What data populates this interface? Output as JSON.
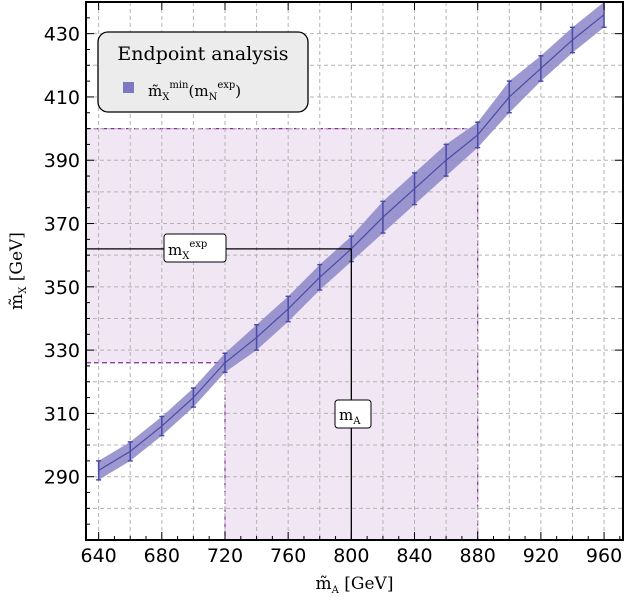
{
  "chart_data": {
    "type": "line",
    "xlabel": {
      "main": "m̃",
      "sub": "A",
      "unit": " [GeV]"
    },
    "ylabel": {
      "main": "m̃",
      "sub": "X",
      "unit": " [GeV]"
    },
    "xlim": [
      632,
      972
    ],
    "ylim": [
      270,
      440
    ],
    "x_ticks": [
      "640",
      "680",
      "720",
      "760",
      "800",
      "840",
      "880",
      "920",
      "960"
    ],
    "y_ticks": [
      "290",
      "310",
      "330",
      "350",
      "370",
      "390",
      "410",
      "430"
    ],
    "grid": true,
    "legend": {
      "title": "Endpoint analysis",
      "placement": "top-left",
      "entry": {
        "base": "m̃",
        "sub1": "X",
        "sup1": "min",
        "mid": "(m",
        "sub2": "N",
        "sup2": "exp",
        "end": ")"
      }
    },
    "series": [
      {
        "x": [
          640,
          660,
          680,
          700,
          720,
          740,
          760,
          780,
          800,
          820,
          840,
          860,
          880,
          900,
          920,
          940,
          960
        ],
        "y": [
          292,
          298,
          306,
          315,
          326,
          334,
          343,
          353,
          362,
          372,
          381,
          390,
          398,
          410,
          419,
          428,
          436
        ],
        "err": [
          3,
          3,
          3,
          3,
          3,
          4,
          4,
          4,
          4,
          5,
          5,
          5,
          4,
          5,
          4,
          4,
          4
        ]
      }
    ],
    "color": "#4a4aa8",
    "band_color": "#8c86c8",
    "region_color": "#f1e6f3",
    "region_line_color": "#8a2b9b",
    "region": {
      "x": [
        720,
        880
      ],
      "y": [
        326,
        400
      ]
    },
    "annotations": [
      {
        "label_main": "m",
        "label_sub": "X",
        "label_sup": "exp",
        "y": 362
      },
      {
        "label_main": "m",
        "label_sub": "A",
        "label_sup": "",
        "x": 800
      }
    ]
  }
}
